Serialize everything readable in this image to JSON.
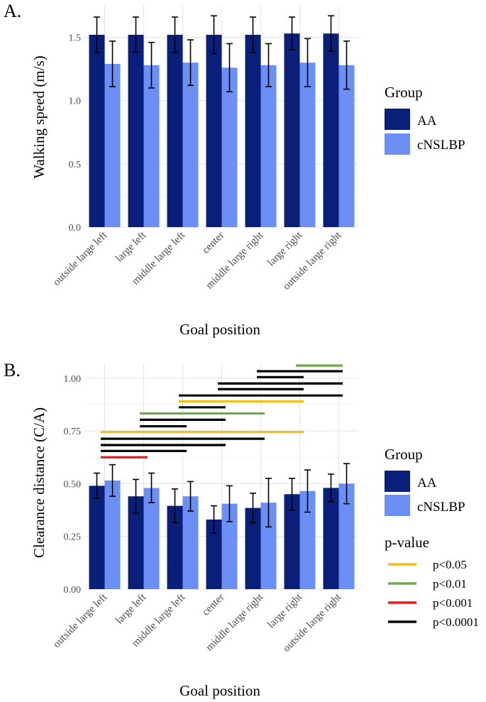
{
  "colors": {
    "AA": "#0a1f7a",
    "cNSLBP": "#6b8ff5",
    "p<0.05": "#f2bd1d",
    "p<0.01": "#6aab45",
    "p<0.001": "#e51b1b",
    "p<0.0001": "#000000"
  },
  "chart_data": [
    {
      "panel": "A.",
      "type": "bar",
      "xlabel": "Goal position",
      "ylabel": "Walking speed (m/s)",
      "ylim": [
        0,
        1.75
      ],
      "yticks": [
        0.0,
        0.5,
        1.0,
        1.5
      ],
      "ytick_labels": [
        "0.0",
        "0.5",
        "1.0",
        "1.5"
      ],
      "categories": [
        "outside large left",
        "large left",
        "middle large left",
        "center",
        "middle large right",
        "large right",
        "outside large right"
      ],
      "series": [
        {
          "name": "AA",
          "values": [
            1.52,
            1.52,
            1.52,
            1.52,
            1.52,
            1.53,
            1.53
          ],
          "errors": [
            0.14,
            0.14,
            0.14,
            0.15,
            0.14,
            0.13,
            0.14
          ]
        },
        {
          "name": "cNSLBP",
          "values": [
            1.29,
            1.28,
            1.3,
            1.26,
            1.28,
            1.3,
            1.28
          ],
          "errors": [
            0.18,
            0.18,
            0.18,
            0.19,
            0.17,
            0.19,
            0.19
          ]
        }
      ],
      "legend": {
        "title": "Group",
        "entries": [
          "AA",
          "cNSLBP"
        ]
      }
    },
    {
      "panel": "B.",
      "type": "bar",
      "xlabel": "Goal position",
      "ylabel": "Clearance distance (C/A)",
      "ylim": [
        0,
        1.07
      ],
      "yticks": [
        0.0,
        0.25,
        0.5,
        0.75,
        1.0
      ],
      "ytick_labels": [
        "0.00",
        "0.25",
        "0.50",
        "0.75",
        "1.00"
      ],
      "categories": [
        "outside large left",
        "large left",
        "middle large left",
        "center",
        "middle large right",
        "large right",
        "outside large right"
      ],
      "series": [
        {
          "name": "AA",
          "values": [
            0.49,
            0.44,
            0.395,
            0.33,
            0.385,
            0.45,
            0.48
          ],
          "errors": [
            0.06,
            0.08,
            0.08,
            0.065,
            0.07,
            0.075,
            0.065
          ]
        },
        {
          "name": "cNSLBP",
          "values": [
            0.515,
            0.48,
            0.44,
            0.405,
            0.41,
            0.465,
            0.5
          ],
          "errors": [
            0.075,
            0.07,
            0.07,
            0.085,
            0.115,
            0.1,
            0.095
          ]
        }
      ],
      "significance": [
        {
          "from": 1,
          "to": 2,
          "y": 0.625,
          "p": "p<0.001"
        },
        {
          "from": 1,
          "to": 3,
          "y": 0.655,
          "p": "p<0.0001"
        },
        {
          "from": 1,
          "to": 4,
          "y": 0.683,
          "p": "p<0.0001"
        },
        {
          "from": 1,
          "to": 5,
          "y": 0.713,
          "p": "p<0.0001"
        },
        {
          "from": 1,
          "to": 6,
          "y": 0.745,
          "p": "p<0.05"
        },
        {
          "from": 2,
          "to": 3,
          "y": 0.772,
          "p": "p<0.0001"
        },
        {
          "from": 2,
          "to": 4,
          "y": 0.803,
          "p": "p<0.0001"
        },
        {
          "from": 2,
          "to": 5,
          "y": 0.833,
          "p": "p<0.01"
        },
        {
          "from": 3,
          "to": 4,
          "y": 0.862,
          "p": "p<0.0001"
        },
        {
          "from": 3,
          "to": 6,
          "y": 0.89,
          "p": "p<0.05"
        },
        {
          "from": 3,
          "to": 7,
          "y": 0.918,
          "p": "p<0.0001"
        },
        {
          "from": 4,
          "to": 6,
          "y": 0.948,
          "p": "p<0.0001"
        },
        {
          "from": 4,
          "to": 7,
          "y": 0.975,
          "p": "p<0.0001"
        },
        {
          "from": 5,
          "to": 6,
          "y": 1.005,
          "p": "p<0.0001"
        },
        {
          "from": 5,
          "to": 7,
          "y": 1.033,
          "p": "p<0.0001"
        },
        {
          "from": 6,
          "to": 7,
          "y": 1.06,
          "p": "p<0.01"
        }
      ],
      "legend": {
        "title": "Group",
        "entries": [
          "AA",
          "cNSLBP"
        ]
      },
      "pvalue_legend": {
        "title": "p-value",
        "entries": [
          "p<0.05",
          "p<0.01",
          "p<0.001",
          "p<0.0001"
        ]
      }
    }
  ]
}
